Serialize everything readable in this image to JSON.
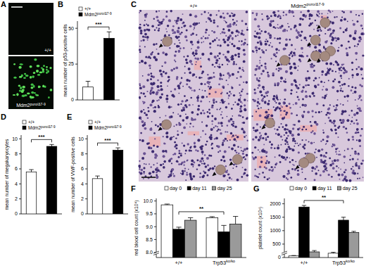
{
  "chart_data": [
    {
      "panel_label": "B",
      "type": "bar",
      "y_label": "mean number of p53-positive cells",
      "series": [
        {
          "name": "+/+",
          "color": "#ffffff",
          "values": [
            9
          ],
          "errors": [
            4
          ]
        },
        {
          "name": "Mdm2puro/Δ7-9",
          "color": "#000000",
          "values": [
            43
          ],
          "errors": [
            4.5
          ]
        }
      ],
      "ylim": [
        0,
        55
      ],
      "yticks": [
        0,
        25,
        50
      ],
      "legend": "top-left",
      "tick_labels": "y",
      "annotations": [
        {
          "text": "***"
        }
      ]
    },
    {
      "panel_label": "D",
      "type": "bar",
      "y_label": "mean number of megakaryocytes",
      "series": [
        {
          "name": "+/+",
          "color": "#ffffff",
          "values": [
            5.6
          ],
          "errors": [
            0.3
          ]
        },
        {
          "name": "Mdm2puro/Δ7-9",
          "color": "#000000",
          "values": [
            9.0
          ],
          "errors": [
            0.25
          ]
        }
      ],
      "ylim": [
        0,
        10.5
      ],
      "yticks": [
        0,
        2,
        4,
        6,
        8,
        10
      ],
      "legend": "top-left",
      "tick_labels": "y",
      "annotations": [
        {
          "text": "***"
        }
      ]
    },
    {
      "panel_label": "E",
      "type": "bar",
      "y_label": "mean number of VWF-positive cells",
      "series": [
        {
          "name": "+/+",
          "color": "#ffffff",
          "values": [
            4.7
          ],
          "errors": [
            0.35
          ]
        },
        {
          "name": "Mdm2puro/Δ7-9",
          "color": "#000000",
          "values": [
            8.5
          ],
          "errors": [
            0.3
          ]
        }
      ],
      "ylim": [
        0,
        10.5
      ],
      "yticks": [
        0,
        2,
        4,
        6,
        8,
        10
      ],
      "legend": "top-left",
      "tick_labels": "y",
      "annotations": [
        {
          "text": "***"
        }
      ]
    },
    {
      "panel_label": "F",
      "type": "bar",
      "y_label": "red blood cell count (x10⁶)",
      "categories": [
        "+/+",
        "Trp53ko/ko"
      ],
      "series": [
        {
          "name": "day 0",
          "color": "#ffffff",
          "values": [
            9.85,
            9.35
          ],
          "errors": [
            0.03,
            0.04
          ]
        },
        {
          "name": "day 11",
          "color": "#000000",
          "values": [
            8.9,
            8.8
          ],
          "errors": [
            0.08,
            0.25
          ]
        },
        {
          "name": "day 25",
          "color": "#9a9a9a",
          "values": [
            9.25,
            9.1
          ],
          "errors": [
            0.1,
            0.3
          ]
        }
      ],
      "ylim": [
        7.8,
        10.1
      ],
      "yticks": [
        {
          "value": 8,
          "label": "8.0"
        },
        8.5,
        {
          "value": 9,
          "label": "9.0"
        },
        9.5,
        {
          "value": 10,
          "label": "10.0"
        }
      ],
      "legend": "top",
      "annotations": [
        {
          "text": "**"
        }
      ]
    },
    {
      "panel_label": "G",
      "type": "bar",
      "y_label": "platelet count (x10³)",
      "categories": [
        "+/+",
        "Trp53ko/ko"
      ],
      "series": [
        {
          "name": "day 0",
          "color": "#ffffff",
          "values": [
            60,
            160
          ],
          "errors": [
            15,
            35
          ]
        },
        {
          "name": "day 11",
          "color": "#000000",
          "values": [
            1880,
            1390
          ],
          "errors": [
            60,
            110
          ]
        },
        {
          "name": "day 25",
          "color": "#9a9a9a",
          "values": [
            210,
            930
          ],
          "errors": [
            50,
            45
          ]
        }
      ],
      "ylim": [
        0,
        2200
      ],
      "yticks": [
        0,
        500,
        1000,
        1500,
        2000
      ],
      "legend": "top",
      "annotations": [
        {
          "text": "**"
        }
      ]
    }
  ],
  "images": {
    "A": {
      "panel_label": "A",
      "labels": [
        "+/+",
        "Mdm2puro/Δ7-9"
      ]
    },
    "C": {
      "panel_label": "C",
      "labels": [
        "+/+",
        "Mdm2puro/Δ7-9"
      ]
    }
  }
}
